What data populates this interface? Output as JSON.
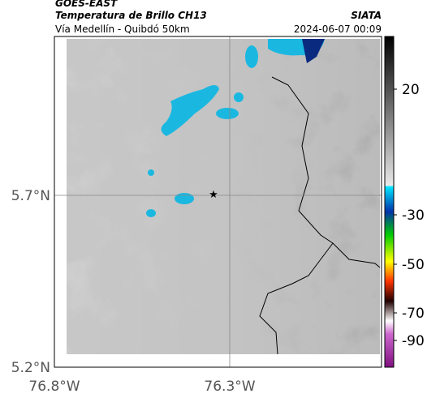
{
  "header": {
    "source": "GOES-EAST",
    "title": "Temperatura de Brillo CH13",
    "subtitle": "Vía Medellín - Quibdó 50km",
    "agency": "SIATA",
    "timestamp": "2024-06-07 00:09"
  },
  "map": {
    "lat_labels": [
      "5.7°N",
      "5.2°N"
    ],
    "lon_labels": [
      "76.8°W",
      "76.3°W"
    ]
  },
  "colorbar": {
    "ticks": [
      20,
      -30,
      -50,
      -70,
      -90
    ]
  }
}
